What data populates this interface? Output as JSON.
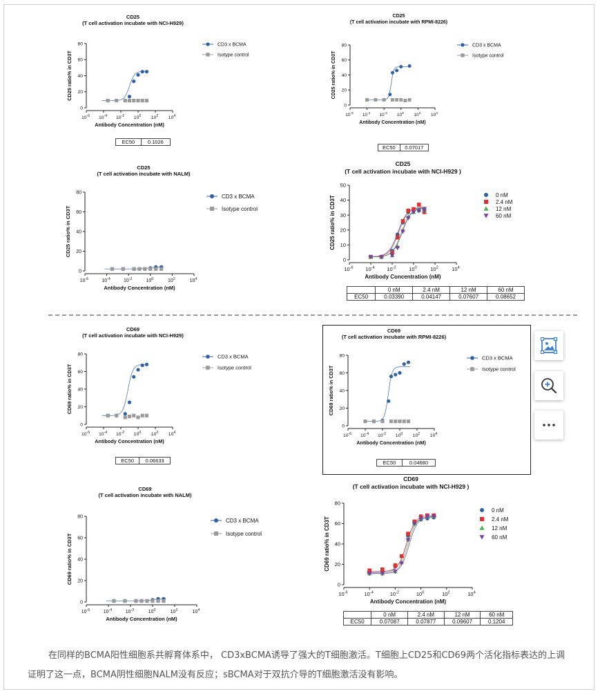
{
  "chart_data": [
    {
      "id": "c1",
      "type": "scatter",
      "title_lines": [
        "CD25",
        "(T cell activation incubate with NCI-H929)"
      ],
      "xlabel": "Antibody Concentration (nM)",
      "ylabel": "CD25 ratio% in CD3T",
      "xlog": true,
      "xlim": [
        -6,
        4
      ],
      "ylim": [
        0,
        80
      ],
      "yticks": [
        0,
        20,
        40,
        60,
        80
      ],
      "series": [
        {
          "name": "CD3 x BCMA",
          "color": "#2e5fa8",
          "marker": "circle",
          "x": [
            -3.5,
            -2.5,
            -1.5,
            -1,
            -0.5,
            0,
            0.5,
            1
          ],
          "y": [
            9,
            9,
            9,
            14,
            33,
            41,
            45,
            45
          ],
          "fit": {
            "bottom": 9,
            "top": 45.5,
            "logec50": -0.99,
            "hill": 1.5
          }
        },
        {
          "name": "Isotype control",
          "color": "#9a9a9a",
          "marker": "square",
          "x": [
            -3.5,
            -2.5,
            -1.5,
            -1,
            -0.5,
            0,
            0.5,
            1
          ],
          "y": [
            9,
            9,
            9,
            9,
            9,
            9,
            9,
            9
          ]
        }
      ],
      "ec50": {
        "header": [
          "EC50"
        ],
        "values": [
          "0.1026"
        ]
      }
    },
    {
      "id": "c2",
      "type": "scatter",
      "title_lines": [
        "CD25",
        "(T cell activation incubate with RPMI-8226)"
      ],
      "xlabel": "Antibody Concentration (nM)",
      "ylabel": "CD25 ratio% in CD3T",
      "xlog": true,
      "xlim": [
        -6,
        4
      ],
      "ylim": [
        0,
        80
      ],
      "yticks": [
        0,
        20,
        40,
        60,
        80
      ],
      "series": [
        {
          "name": "CD3 x BCMA",
          "color": "#2e5fa8",
          "marker": "circle",
          "x": [
            -4,
            -3,
            -2,
            -1.3,
            -1,
            -0.5,
            0,
            1
          ],
          "y": [
            7,
            7,
            7,
            14,
            43,
            46,
            51,
            52
          ],
          "fit": {
            "bottom": 7,
            "top": 51,
            "logec50": -1.15,
            "hill": 3
          }
        },
        {
          "name": "Isotype control",
          "color": "#9a9a9a",
          "marker": "square",
          "x": [
            -4,
            -3,
            -2,
            -1,
            -0.5,
            0,
            0.5,
            1
          ],
          "y": [
            7,
            7,
            7,
            7,
            7,
            7,
            6,
            7
          ]
        }
      ],
      "ec50": {
        "header": [
          "EC50"
        ],
        "values": [
          "0.07017"
        ]
      }
    },
    {
      "id": "c3",
      "type": "scatter",
      "title_lines": [
        "CD25",
        "(T cell activation incubate with NALM)"
      ],
      "xlabel": "Antibody Concentration (nM)",
      "ylabel": "CD25 ratio% in CD3T",
      "xlog": true,
      "xlim": [
        -6,
        4
      ],
      "ylim": [
        0,
        80
      ],
      "yticks": [
        0,
        20,
        40,
        60,
        80
      ],
      "series": [
        {
          "name": "CD3 x BCMA",
          "color": "#2e5fa8",
          "marker": "circle",
          "x": [
            -3.5,
            -2.5,
            -1.5,
            -1,
            -0.5,
            0,
            0.5,
            1
          ],
          "y": [
            2,
            2,
            2,
            2,
            2,
            3,
            4,
            4
          ],
          "fit": {
            "bottom": 2,
            "top": 4,
            "logec50": 0,
            "hill": 1
          }
        },
        {
          "name": "Isotype control",
          "color": "#9a9a9a",
          "marker": "square",
          "x": [
            -3.5,
            -2.5,
            -1.5,
            -1,
            -0.5,
            0,
            0.5,
            1
          ],
          "y": [
            2,
            2,
            2,
            2,
            2,
            2,
            2,
            2
          ]
        }
      ]
    },
    {
      "id": "c4",
      "type": "scatter",
      "title_lines": [
        "CD25",
        "(T cell activation incubate with NCI-H929 )"
      ],
      "xlabel": "Antibody Concentration (nM)",
      "ylabel": "CD25 ratio% in CD3T",
      "xlog": true,
      "xlim": [
        -6,
        4
      ],
      "ylim": [
        0,
        50
      ],
      "yticks": [
        0,
        10,
        20,
        30,
        40,
        50
      ],
      "series": [
        {
          "name": "0 nM",
          "color": "#2e5fa8",
          "marker": "circle",
          "x": [
            -4,
            -3,
            -2,
            -1.5,
            -1,
            -0.5,
            0,
            0.5,
            1
          ],
          "y": [
            2,
            2,
            6,
            17,
            25,
            32,
            33,
            33,
            34
          ],
          "fit": {
            "bottom": 2,
            "top": 35,
            "logec50": -1.47,
            "hill": 1
          }
        },
        {
          "name": "2.4 nM",
          "color": "#e23030",
          "marker": "square",
          "x": [
            -4,
            -3,
            -2,
            -1.5,
            -1,
            -0.5,
            0,
            0.5,
            1
          ],
          "y": [
            2,
            2,
            5,
            15,
            26,
            33,
            34,
            37,
            32
          ],
          "fit": {
            "bottom": 2,
            "top": 35.5,
            "logec50": -1.38,
            "hill": 1
          }
        },
        {
          "name": "12 nM",
          "color": "#4caf50",
          "marker": "triangle-up",
          "x": [
            -4,
            -3,
            -2,
            -1.5,
            -1,
            -0.5,
            0,
            0.5,
            1
          ],
          "y": [
            2,
            2,
            3,
            9,
            20,
            29,
            32,
            34,
            33
          ],
          "fit": {
            "bottom": 2,
            "top": 35,
            "logec50": -1.12,
            "hill": 1
          }
        },
        {
          "name": "60 nM",
          "color": "#7b3fa0",
          "marker": "triangle-down",
          "x": [
            -4,
            -3,
            -2,
            -1.5,
            -1,
            -0.5,
            0,
            0.5,
            1
          ],
          "y": [
            2,
            2,
            3,
            8,
            19,
            28,
            32,
            33,
            33
          ],
          "fit": {
            "bottom": 2,
            "top": 35,
            "logec50": -1.06,
            "hill": 1
          }
        }
      ],
      "ec50": {
        "header": [
          "",
          "0 nM",
          "2.4 nM",
          "12 nM",
          "60 nM"
        ],
        "row_label": "EC50",
        "values": [
          "0.03390",
          "0.04147",
          "0.07607",
          "0.08652"
        ]
      }
    },
    {
      "id": "c5",
      "type": "scatter",
      "title_lines": [
        "CD69",
        "(T cell activation incubate with NCI-H929)"
      ],
      "xlabel": "Antibody Concentration (nM)",
      "ylabel": "CD69 ratio% in CD3T",
      "xlog": true,
      "xlim": [
        -6,
        4
      ],
      "ylim": [
        0,
        80
      ],
      "yticks": [
        0,
        20,
        40,
        60,
        80
      ],
      "series": [
        {
          "name": "CD3 x BCMA",
          "color": "#2e5fa8",
          "marker": "circle",
          "x": [
            -3.5,
            -2.5,
            -1.5,
            -1,
            -0.5,
            0,
            0.5,
            1
          ],
          "y": [
            10,
            10,
            12,
            25,
            54,
            62,
            67,
            68
          ],
          "fit": {
            "bottom": 10,
            "top": 68,
            "logec50": -1.18,
            "hill": 1.5
          }
        },
        {
          "name": "Isotype control",
          "color": "#9a9a9a",
          "marker": "square",
          "x": [
            -3.5,
            -2.5,
            -1.5,
            -1,
            -0.5,
            0,
            0.5,
            1
          ],
          "y": [
            10,
            10,
            8,
            9,
            10,
            8,
            10,
            10
          ]
        }
      ],
      "ec50": {
        "header": [
          "EC50"
        ],
        "values": [
          "0.06633"
        ]
      }
    },
    {
      "id": "c6",
      "type": "scatter",
      "title_lines": [
        "CD69",
        "(T cell activation incubate with RPMI-8226)"
      ],
      "xlabel": "Antibody Concentration (nM)",
      "ylabel": "CD69 ratio% in CD3T",
      "xlog": true,
      "xlim": [
        -6,
        4
      ],
      "ylim": [
        0,
        80
      ],
      "yticks": [
        0,
        20,
        40,
        60,
        80
      ],
      "series": [
        {
          "name": "CD3 x BCMA",
          "color": "#2e5fa8",
          "marker": "circle",
          "x": [
            -4,
            -3,
            -2,
            -1.3,
            -1,
            -0.5,
            0,
            0.5,
            1
          ],
          "y": [
            5,
            5,
            6,
            28,
            56,
            58,
            60,
            70,
            72
          ],
          "fit": {
            "bottom": 5,
            "top": 67,
            "logec50": -1.33,
            "hill": 2
          }
        },
        {
          "name": "Isotype control",
          "color": "#9a9a9a",
          "marker": "square",
          "x": [
            -4,
            -3,
            -2,
            -1,
            -0.5,
            0,
            0.5,
            1
          ],
          "y": [
            5,
            5,
            5,
            5,
            5,
            5,
            5,
            5
          ]
        }
      ],
      "ec50": {
        "header": [
          "EC50"
        ],
        "values": [
          "0.04680"
        ]
      }
    },
    {
      "id": "c7",
      "type": "scatter",
      "title_lines": [
        "CD69",
        "(T cell activation incubate with NALM)"
      ],
      "xlabel": "Antibody Concentration (nM)",
      "ylabel": "CD69 ratio% in CD3T",
      "xlog": true,
      "xlim": [
        -6,
        4
      ],
      "ylim": [
        0,
        80
      ],
      "yticks": [
        0,
        20,
        40,
        60,
        80
      ],
      "series": [
        {
          "name": "CD3 x BCMA",
          "color": "#2e5fa8",
          "marker": "circle",
          "x": [
            -3.5,
            -2.5,
            -1.5,
            -1,
            -0.5,
            0,
            0.5,
            1
          ],
          "y": [
            1,
            1,
            1,
            1,
            1,
            2,
            3,
            3
          ],
          "fit": {
            "bottom": 1,
            "top": 3,
            "logec50": 0,
            "hill": 1
          }
        },
        {
          "name": "Isotype control",
          "color": "#9a9a9a",
          "marker": "square",
          "x": [
            -3.5,
            -2.5,
            -1.5,
            -1,
            -0.5,
            0,
            0.5,
            1
          ],
          "y": [
            1,
            1,
            1,
            1,
            1,
            1,
            1,
            1
          ]
        }
      ]
    },
    {
      "id": "c8",
      "type": "scatter",
      "title_lines": [
        "CD69",
        "(T cell activation incubate with NCI-H929 )"
      ],
      "xlabel": "Antibody Concentration (nM)",
      "ylabel": "CD69 ratio% in CD3T",
      "xlog": true,
      "xlim": [
        -6,
        4
      ],
      "ylim": [
        0,
        80
      ],
      "yticks": [
        0,
        20,
        40,
        60,
        80
      ],
      "series": [
        {
          "name": "0 nM",
          "color": "#2e5fa8",
          "marker": "circle",
          "x": [
            -4,
            -3,
            -2,
            -1.5,
            -1,
            -0.5,
            0,
            0.5,
            1
          ],
          "y": [
            12,
            13,
            18,
            28,
            48,
            60,
            64,
            65,
            66
          ],
          "fit": {
            "bottom": 12,
            "top": 66,
            "logec50": -1.15,
            "hill": 1.3
          }
        },
        {
          "name": "2.4 nM",
          "color": "#e23030",
          "marker": "square",
          "x": [
            -4,
            -3,
            -2,
            -1.5,
            -1,
            -0.5,
            0,
            0.5,
            1
          ],
          "y": [
            14,
            15,
            19,
            28,
            50,
            62,
            67,
            68,
            68
          ],
          "fit": {
            "bottom": 13,
            "top": 68,
            "logec50": -1.1,
            "hill": 1.3
          }
        },
        {
          "name": "12 nM",
          "color": "#4caf50",
          "marker": "triangle-up",
          "x": [
            -4,
            -3,
            -2,
            -1.5,
            -1,
            -0.5,
            0,
            0.5,
            1
          ],
          "y": [
            11,
            11,
            13,
            22,
            45,
            60,
            65,
            67,
            67
          ],
          "fit": {
            "bottom": 11,
            "top": 67,
            "logec50": -1.02,
            "hill": 1.3
          }
        },
        {
          "name": "60 nM",
          "color": "#7b3fa0",
          "marker": "triangle-down",
          "x": [
            -4,
            -3,
            -2,
            -1.5,
            -1,
            -0.5,
            0,
            0.5,
            1
          ],
          "y": [
            11,
            11,
            13,
            21,
            44,
            60,
            65,
            67,
            67
          ],
          "fit": {
            "bottom": 11,
            "top": 67,
            "logec50": -0.92,
            "hill": 1.3
          }
        }
      ],
      "ec50": {
        "header": [
          "",
          "0 nM",
          "2.4 nM",
          "12 nM",
          "60 nM"
        ],
        "row_label": "EC50",
        "values": [
          "0.07087",
          "0.07877",
          "0.09607",
          "0.1204"
        ]
      }
    }
  ],
  "toolbar": {
    "buttons": [
      {
        "name": "image-frame-icon",
        "label": ""
      },
      {
        "name": "zoom-in-icon",
        "label": "+"
      },
      {
        "name": "more-icon",
        "label": "···"
      }
    ],
    "accent": "#3f7fd6"
  },
  "caption": "在同样的BCMA阳性细胞系共孵育体系中， CD3xBCMA诱导了强大的T细胞激活。T细胞上CD25和CD69两个活化指标表达的上调证明了这一点，BCMA阴性细胞NALM没有反应；sBCMA对于双抗介导的T细胞激活没有影响。"
}
